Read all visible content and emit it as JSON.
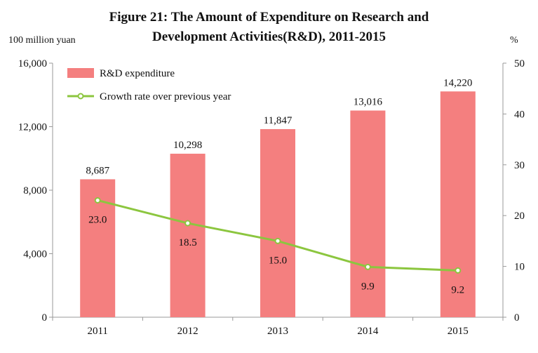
{
  "header": {
    "title_line1": "Figure 21: The Amount of Expenditure on Research and",
    "title_line2": "Development Activities(R&D), 2011-2015",
    "left_unit": "100 million yuan",
    "right_unit": "%"
  },
  "chart_data": {
    "type": "bar",
    "title": "Figure 21: The Amount of Expenditure on Research and Development Activities(R&D), 2011-2015",
    "categories": [
      "2011",
      "2012",
      "2013",
      "2014",
      "2015"
    ],
    "series": [
      {
        "name": "R&D expenditure",
        "type": "bar",
        "axis": "left",
        "values": [
          8687,
          10298,
          11847,
          13016,
          14220
        ],
        "labels": [
          "8,687",
          "10,298",
          "11,847",
          "13,016",
          "14,220"
        ],
        "color": "#f47f7f"
      },
      {
        "name": "Growth rate over previous year",
        "type": "line",
        "axis": "right",
        "values": [
          23.0,
          18.5,
          15.0,
          9.9,
          9.2
        ],
        "labels": [
          "23.0",
          "18.5",
          "15.0",
          "9.9",
          "9.2"
        ],
        "color": "#8cc63f"
      }
    ],
    "y_left": {
      "label": "100 million yuan",
      "ylim": [
        0,
        16000
      ],
      "ticks": [
        0,
        4000,
        8000,
        12000,
        16000
      ],
      "tick_labels": [
        "0",
        "4,000",
        "8,000",
        "12,000",
        "16,000"
      ]
    },
    "y_right": {
      "label": "%",
      "ylim": [
        0,
        50
      ],
      "ticks": [
        0,
        10,
        20,
        30,
        40,
        50
      ],
      "tick_labels": [
        "0",
        "10",
        "20",
        "30",
        "40",
        "50"
      ]
    },
    "legend_position": "top-left",
    "grid": false
  }
}
